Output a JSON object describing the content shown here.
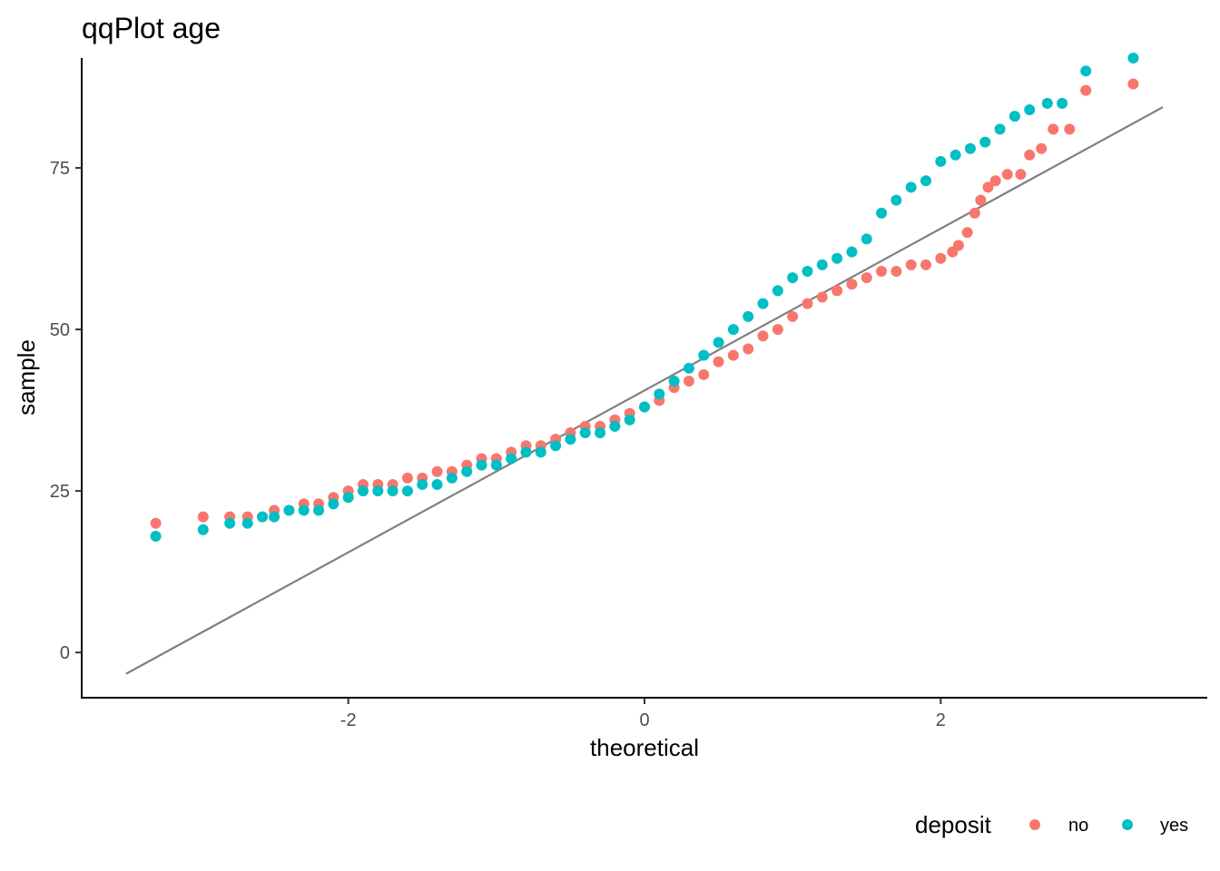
{
  "chart_data": {
    "type": "scatter",
    "title": "qqPlot age",
    "xlabel": "theoretical",
    "ylabel": "sample",
    "xlim": [
      -3.8,
      3.8
    ],
    "ylim": [
      -7,
      92
    ],
    "x_ticks": [
      -2,
      0,
      2
    ],
    "y_ticks": [
      0,
      25,
      50,
      75
    ],
    "x_tick_labels": [
      "-2",
      "0",
      "2"
    ],
    "y_tick_labels": [
      "0",
      "25",
      "50",
      "75"
    ],
    "grid": false,
    "legend": {
      "title": "deposit",
      "placement": "bottom-right"
    },
    "reference_line": {
      "x": [
        -3.5,
        3.5
      ],
      "y": [
        -3.3,
        84.4
      ],
      "color": "#808080"
    },
    "series": [
      {
        "name": "no",
        "color": "#F8766D",
        "points": [
          [
            -3.3,
            20
          ],
          [
            -2.98,
            21
          ],
          [
            -2.8,
            21
          ],
          [
            -2.68,
            21
          ],
          [
            -2.58,
            21
          ],
          [
            -2.5,
            22
          ],
          [
            -2.4,
            22
          ],
          [
            -2.3,
            23
          ],
          [
            -2.2,
            23
          ],
          [
            -2.1,
            24
          ],
          [
            -2.0,
            25
          ],
          [
            -1.9,
            26
          ],
          [
            -1.8,
            26
          ],
          [
            -1.7,
            26
          ],
          [
            -1.6,
            27
          ],
          [
            -1.5,
            27
          ],
          [
            -1.4,
            28
          ],
          [
            -1.3,
            28
          ],
          [
            -1.2,
            29
          ],
          [
            -1.1,
            30
          ],
          [
            -1.0,
            30
          ],
          [
            -0.9,
            31
          ],
          [
            -0.8,
            32
          ],
          [
            -0.7,
            32
          ],
          [
            -0.6,
            33
          ],
          [
            -0.5,
            34
          ],
          [
            -0.4,
            35
          ],
          [
            -0.3,
            35
          ],
          [
            -0.2,
            36
          ],
          [
            -0.1,
            37
          ],
          [
            0.0,
            38
          ],
          [
            0.1,
            39
          ],
          [
            0.2,
            41
          ],
          [
            0.3,
            42
          ],
          [
            0.4,
            43
          ],
          [
            0.5,
            45
          ],
          [
            0.6,
            46
          ],
          [
            0.7,
            47
          ],
          [
            0.8,
            49
          ],
          [
            0.9,
            50
          ],
          [
            1.0,
            52
          ],
          [
            1.1,
            54
          ],
          [
            1.2,
            55
          ],
          [
            1.3,
            56
          ],
          [
            1.4,
            57
          ],
          [
            1.5,
            58
          ],
          [
            1.6,
            59
          ],
          [
            1.7,
            59
          ],
          [
            1.8,
            60
          ],
          [
            1.9,
            60
          ],
          [
            2.0,
            61
          ],
          [
            2.08,
            62
          ],
          [
            2.12,
            63
          ],
          [
            2.18,
            65
          ],
          [
            2.23,
            68
          ],
          [
            2.27,
            70
          ],
          [
            2.32,
            72
          ],
          [
            2.37,
            73
          ],
          [
            2.45,
            74
          ],
          [
            2.54,
            74
          ],
          [
            2.6,
            77
          ],
          [
            2.68,
            78
          ],
          [
            2.76,
            81
          ],
          [
            2.87,
            81
          ],
          [
            2.98,
            87
          ],
          [
            3.3,
            88
          ]
        ]
      },
      {
        "name": "yes",
        "color": "#00BFC4",
        "points": [
          [
            -3.3,
            18
          ],
          [
            -2.98,
            19
          ],
          [
            -2.8,
            20
          ],
          [
            -2.68,
            20
          ],
          [
            -2.58,
            21
          ],
          [
            -2.5,
            21
          ],
          [
            -2.4,
            22
          ],
          [
            -2.3,
            22
          ],
          [
            -2.2,
            22
          ],
          [
            -2.1,
            23
          ],
          [
            -2.0,
            24
          ],
          [
            -1.9,
            25
          ],
          [
            -1.8,
            25
          ],
          [
            -1.7,
            25
          ],
          [
            -1.6,
            25
          ],
          [
            -1.5,
            26
          ],
          [
            -1.4,
            26
          ],
          [
            -1.3,
            27
          ],
          [
            -1.2,
            28
          ],
          [
            -1.1,
            29
          ],
          [
            -1.0,
            29
          ],
          [
            -0.9,
            30
          ],
          [
            -0.8,
            31
          ],
          [
            -0.7,
            31
          ],
          [
            -0.6,
            32
          ],
          [
            -0.5,
            33
          ],
          [
            -0.4,
            34
          ],
          [
            -0.3,
            34
          ],
          [
            -0.2,
            35
          ],
          [
            -0.1,
            36
          ],
          [
            0.0,
            38
          ],
          [
            0.1,
            40
          ],
          [
            0.2,
            42
          ],
          [
            0.3,
            44
          ],
          [
            0.4,
            46
          ],
          [
            0.5,
            48
          ],
          [
            0.6,
            50
          ],
          [
            0.7,
            52
          ],
          [
            0.8,
            54
          ],
          [
            0.9,
            56
          ],
          [
            1.0,
            58
          ],
          [
            1.1,
            59
          ],
          [
            1.2,
            60
          ],
          [
            1.3,
            61
          ],
          [
            1.4,
            62
          ],
          [
            1.5,
            64
          ],
          [
            1.6,
            68
          ],
          [
            1.7,
            70
          ],
          [
            1.8,
            72
          ],
          [
            1.9,
            73
          ],
          [
            2.0,
            76
          ],
          [
            2.1,
            77
          ],
          [
            2.2,
            78
          ],
          [
            2.3,
            79
          ],
          [
            2.4,
            81
          ],
          [
            2.5,
            83
          ],
          [
            2.6,
            84
          ],
          [
            2.72,
            85
          ],
          [
            2.82,
            85
          ],
          [
            2.98,
            90
          ],
          [
            3.3,
            92
          ]
        ]
      }
    ]
  }
}
